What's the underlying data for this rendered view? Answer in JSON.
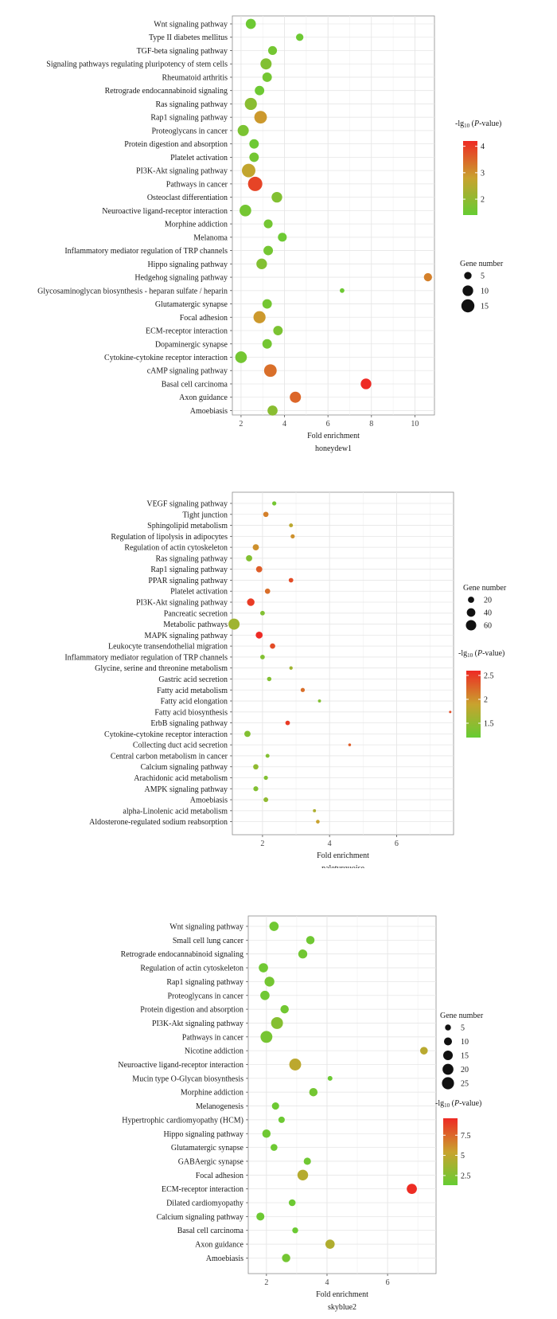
{
  "chart_data": [
    {
      "type": "scatter",
      "module": "honeydew1",
      "xlabel": "Fold enrichment",
      "x_ticks": [
        2,
        4,
        6,
        8,
        10
      ],
      "xlim": [
        1.6,
        10.9
      ],
      "color_legend": {
        "title_prefix": "-lg",
        "title_sub": "10",
        "title_mid": " (",
        "title_italic": "P",
        "title_suffix": "-value)",
        "ticks": [
          2,
          3,
          4
        ],
        "range": [
          1.4,
          4.2
        ]
      },
      "size_legend": {
        "title": "Gene number",
        "ticks": [
          5,
          10,
          15
        ],
        "range": [
          1,
          18
        ]
      },
      "colors": {
        "low": "#66cc33",
        "mid": "#c9a22e",
        "high": "#ee2a24"
      },
      "terms": [
        {
          "name": "Wnt signaling pathway",
          "x": 2.45,
          "p": 1.5,
          "n": 9
        },
        {
          "name": "Type II diabetes mellitus",
          "x": 4.7,
          "p": 1.5,
          "n": 5
        },
        {
          "name": "TGF-beta signaling pathway",
          "x": 3.45,
          "p": 1.6,
          "n": 7
        },
        {
          "name": "Signaling pathways regulating pluripotency of stem cells",
          "x": 3.15,
          "p": 1.8,
          "n": 11
        },
        {
          "name": "Rheumatoid arthritis",
          "x": 3.2,
          "p": 1.6,
          "n": 8
        },
        {
          "name": "Retrograde endocannabinoid signaling",
          "x": 2.85,
          "p": 1.5,
          "n": 8
        },
        {
          "name": "Ras signaling pathway",
          "x": 2.45,
          "p": 1.9,
          "n": 13
        },
        {
          "name": "Rap1 signaling pathway",
          "x": 2.9,
          "p": 2.9,
          "n": 14
        },
        {
          "name": "Proteoglycans in cancer",
          "x": 2.1,
          "p": 1.7,
          "n": 11
        },
        {
          "name": "Protein digestion and absorption",
          "x": 2.6,
          "p": 1.5,
          "n": 8
        },
        {
          "name": "Platelet activation",
          "x": 2.6,
          "p": 1.6,
          "n": 8
        },
        {
          "name": "PI3K-Akt signaling pathway",
          "x": 2.35,
          "p": 2.7,
          "n": 16
        },
        {
          "name": "Pathways in cancer",
          "x": 2.65,
          "p": 3.9,
          "n": 18
        },
        {
          "name": "Osteoclast differentiation",
          "x": 3.65,
          "p": 1.8,
          "n": 10
        },
        {
          "name": "Neuroactive ligand-receptor interaction",
          "x": 2.2,
          "p": 1.6,
          "n": 12
        },
        {
          "name": "Morphine addiction",
          "x": 3.25,
          "p": 1.6,
          "n": 7
        },
        {
          "name": "Melanoma",
          "x": 3.9,
          "p": 1.5,
          "n": 7
        },
        {
          "name": "Inflammatory mediator regulation of TRP channels",
          "x": 3.25,
          "p": 1.6,
          "n": 8
        },
        {
          "name": "Hippo signaling pathway",
          "x": 2.95,
          "p": 1.8,
          "n": 10
        },
        {
          "name": "Hedgehog signaling pathway",
          "x": 10.6,
          "p": 3.2,
          "n": 6
        },
        {
          "name": "Glycosaminoglycan biosynthesis - heparan sulfate / heparin",
          "x": 6.65,
          "p": 1.5,
          "n": 2
        },
        {
          "name": "Glutamatergic synapse",
          "x": 3.2,
          "p": 1.6,
          "n": 8
        },
        {
          "name": "Focal adhesion",
          "x": 2.85,
          "p": 2.9,
          "n": 13
        },
        {
          "name": "ECM-receptor interaction",
          "x": 3.7,
          "p": 1.7,
          "n": 8
        },
        {
          "name": "Dopaminergic synapse",
          "x": 3.2,
          "p": 1.6,
          "n": 8
        },
        {
          "name": "Cytokine-cytokine receptor interaction",
          "x": 2.0,
          "p": 1.6,
          "n": 12
        },
        {
          "name": "cAMP signaling pathway",
          "x": 3.35,
          "p": 3.4,
          "n": 14
        },
        {
          "name": "Basal cell carcinoma",
          "x": 7.75,
          "p": 4.2,
          "n": 10
        },
        {
          "name": "Axon guidance",
          "x": 4.5,
          "p": 3.5,
          "n": 11
        },
        {
          "name": "Amoebiasis",
          "x": 3.45,
          "p": 1.9,
          "n": 9
        }
      ]
    },
    {
      "type": "scatter",
      "module": "paleturquoise",
      "xlabel": "Fold enrichment",
      "x_ticks": [
        2,
        4,
        6
      ],
      "xlim": [
        1.1,
        7.7
      ],
      "color_legend": {
        "title_prefix": "-lg",
        "title_sub": "10",
        "title_mid": " (",
        "title_italic": "P",
        "title_suffix": "-value)",
        "ticks": [
          1.5,
          2.0,
          2.5
        ],
        "range": [
          1.2,
          2.6
        ]
      },
      "size_legend": {
        "title": "Gene number",
        "ticks": [
          20,
          40,
          60
        ],
        "range": [
          2,
          70
        ]
      },
      "colors": {
        "low": "#66cc33",
        "mid": "#c9a22e",
        "high": "#ee2a24"
      },
      "terms": [
        {
          "name": "VEGF signaling pathway",
          "x": 2.35,
          "p": 1.3,
          "n": 8
        },
        {
          "name": "Tight junction",
          "x": 2.1,
          "p": 2.1,
          "n": 14
        },
        {
          "name": "Sphingolipid metabolism",
          "x": 2.85,
          "p": 1.8,
          "n": 7
        },
        {
          "name": "Regulation of lipolysis in adipocytes",
          "x": 2.9,
          "p": 2.0,
          "n": 8
        },
        {
          "name": "Regulation of actin cytoskeleton",
          "x": 1.8,
          "p": 2.0,
          "n": 20
        },
        {
          "name": "Ras signaling pathway",
          "x": 1.6,
          "p": 1.4,
          "n": 20
        },
        {
          "name": "Rap1 signaling pathway",
          "x": 1.9,
          "p": 2.3,
          "n": 20
        },
        {
          "name": "PPAR signaling pathway",
          "x": 2.85,
          "p": 2.4,
          "n": 10
        },
        {
          "name": "Platelet activation",
          "x": 2.15,
          "p": 2.2,
          "n": 14
        },
        {
          "name": "PI3K-Akt signaling pathway",
          "x": 1.65,
          "p": 2.5,
          "n": 30
        },
        {
          "name": "Pancreatic secretion",
          "x": 2.0,
          "p": 1.4,
          "n": 10
        },
        {
          "name": "Metabolic pathways",
          "x": 1.15,
          "p": 1.6,
          "n": 70
        },
        {
          "name": "MAPK signaling pathway",
          "x": 1.9,
          "p": 2.6,
          "n": 25
        },
        {
          "name": "Leukocyte transendothelial migration",
          "x": 2.3,
          "p": 2.4,
          "n": 14
        },
        {
          "name": "Inflammatory mediator regulation of TRP channels",
          "x": 2.0,
          "p": 1.4,
          "n": 10
        },
        {
          "name": "Glycine, serine and threonine metabolism",
          "x": 2.85,
          "p": 1.6,
          "n": 5
        },
        {
          "name": "Gastric acid secretion",
          "x": 2.2,
          "p": 1.4,
          "n": 9
        },
        {
          "name": "Fatty acid metabolism",
          "x": 3.2,
          "p": 2.2,
          "n": 8
        },
        {
          "name": "Fatty acid elongation",
          "x": 3.7,
          "p": 1.4,
          "n": 4
        },
        {
          "name": "Fatty acid biosynthesis",
          "x": 7.6,
          "p": 2.4,
          "n": 2
        },
        {
          "name": "ErbB signaling pathway",
          "x": 2.75,
          "p": 2.5,
          "n": 10
        },
        {
          "name": "Cytokine-cytokine receptor interaction",
          "x": 1.55,
          "p": 1.4,
          "n": 20
        },
        {
          "name": "Collecting duct acid secretion",
          "x": 4.6,
          "p": 2.3,
          "n": 3
        },
        {
          "name": "Central carbon metabolism in cancer",
          "x": 2.15,
          "p": 1.4,
          "n": 7
        },
        {
          "name": "Calcium signaling pathway",
          "x": 1.8,
          "p": 1.5,
          "n": 14
        },
        {
          "name": "Arachidonic acid metabolism",
          "x": 2.1,
          "p": 1.4,
          "n": 8
        },
        {
          "name": "AMPK signaling pathway",
          "x": 1.8,
          "p": 1.4,
          "n": 12
        },
        {
          "name": "Amoebiasis",
          "x": 2.1,
          "p": 1.5,
          "n": 11
        },
        {
          "name": "alpha-Linolenic acid metabolism",
          "x": 3.55,
          "p": 1.7,
          "n": 4
        },
        {
          "name": "Aldosterone-regulated sodium reabsorption",
          "x": 3.65,
          "p": 1.9,
          "n": 6
        }
      ]
    },
    {
      "type": "scatter",
      "module": "skyblue2",
      "xlabel": "Fold enrichment",
      "x_ticks": [
        2,
        4,
        6
      ],
      "xlim": [
        1.4,
        7.6
      ],
      "color_legend": {
        "title_prefix": "-lg",
        "title_sub": "10",
        "title_mid": " (",
        "title_italic": "P",
        "title_suffix": "-value)",
        "ticks": [
          2.5,
          5.0,
          7.5
        ],
        "range": [
          1.3,
          9.6
        ]
      },
      "size_legend": {
        "title": "Gene number",
        "ticks": [
          5,
          10,
          15,
          20,
          25
        ],
        "range": [
          1,
          28
        ]
      },
      "colors": {
        "low": "#66cc33",
        "mid": "#c9a22e",
        "high": "#ee2a24"
      },
      "terms": [
        {
          "name": "Wnt signaling pathway",
          "x": 2.25,
          "p": 1.7,
          "n": 14
        },
        {
          "name": "Small cell lung cancer",
          "x": 3.45,
          "p": 1.7,
          "n": 11
        },
        {
          "name": "Retrograde endocannabinoid signaling",
          "x": 3.2,
          "p": 1.8,
          "n": 13
        },
        {
          "name": "Regulation of actin cytoskeleton",
          "x": 1.9,
          "p": 1.7,
          "n": 14
        },
        {
          "name": "Rap1 signaling pathway",
          "x": 2.1,
          "p": 1.9,
          "n": 16
        },
        {
          "name": "Proteoglycans in cancer",
          "x": 1.95,
          "p": 1.7,
          "n": 14
        },
        {
          "name": "Protein digestion and absorption",
          "x": 2.6,
          "p": 1.8,
          "n": 11
        },
        {
          "name": "PI3K-Akt signaling pathway",
          "x": 2.35,
          "p": 2.6,
          "n": 24
        },
        {
          "name": "Pathways in cancer",
          "x": 2.0,
          "p": 2.0,
          "n": 24
        },
        {
          "name": "Nicotine addiction",
          "x": 7.2,
          "p": 4.8,
          "n": 9
        },
        {
          "name": "Neuroactive ligand-receptor interaction",
          "x": 2.95,
          "p": 4.9,
          "n": 24
        },
        {
          "name": "Mucin type O-Glycan biosynthesis",
          "x": 4.1,
          "p": 1.5,
          "n": 3
        },
        {
          "name": "Morphine addiction",
          "x": 3.55,
          "p": 1.9,
          "n": 11
        },
        {
          "name": "Melanogenesis",
          "x": 2.3,
          "p": 1.6,
          "n": 8
        },
        {
          "name": "Hypertrophic cardiomyopathy (HCM)",
          "x": 2.5,
          "p": 1.6,
          "n": 6
        },
        {
          "name": "Hippo signaling pathway",
          "x": 2.0,
          "p": 1.7,
          "n": 11
        },
        {
          "name": "Glutamatergic synapse",
          "x": 2.25,
          "p": 1.6,
          "n": 7
        },
        {
          "name": "GABAergic synapse",
          "x": 3.35,
          "p": 1.7,
          "n": 8
        },
        {
          "name": "Focal adhesion",
          "x": 3.2,
          "p": 4.6,
          "n": 19
        },
        {
          "name": "ECM-receptor interaction",
          "x": 6.8,
          "p": 9.5,
          "n": 17
        },
        {
          "name": "Dilated cardiomyopathy",
          "x": 2.85,
          "p": 1.6,
          "n": 7
        },
        {
          "name": "Calcium signaling pathway",
          "x": 1.8,
          "p": 1.6,
          "n": 10
        },
        {
          "name": "Basal cell carcinoma",
          "x": 2.95,
          "p": 1.5,
          "n": 5
        },
        {
          "name": "Axon guidance",
          "x": 4.1,
          "p": 4.4,
          "n": 14
        },
        {
          "name": "Amoebiasis",
          "x": 2.65,
          "p": 1.9,
          "n": 11
        }
      ]
    }
  ]
}
